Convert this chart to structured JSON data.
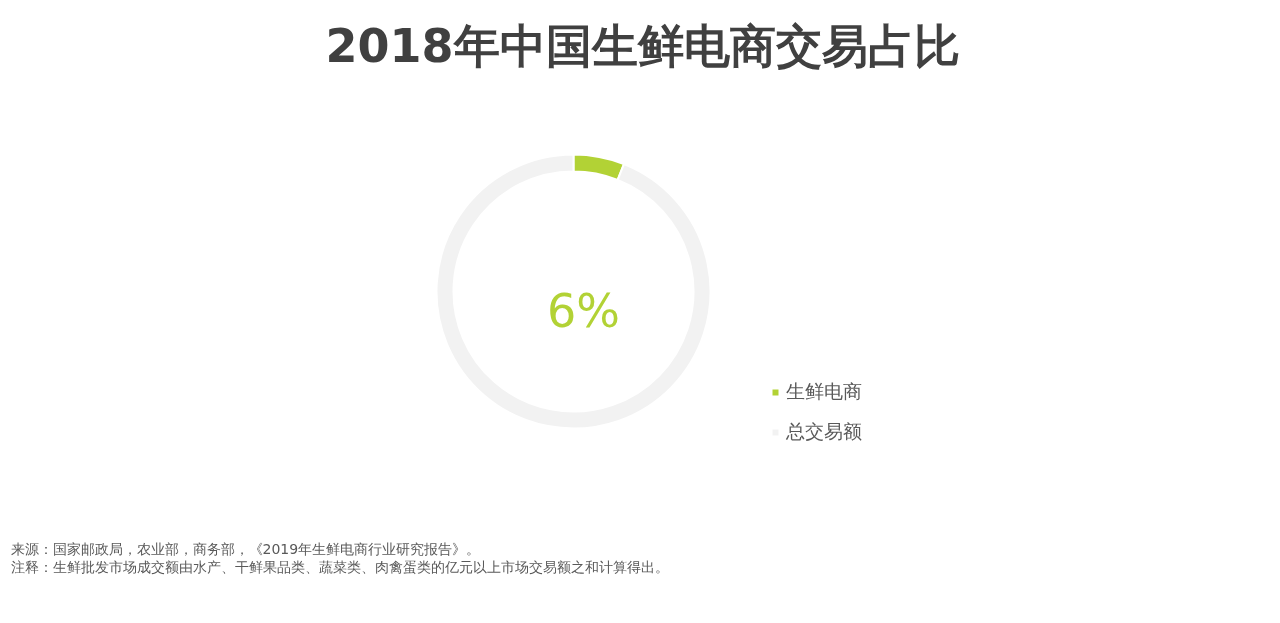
{
  "chart_data": {
    "type": "donut",
    "title": "2018年中国生鲜电商交易占比",
    "categories": [
      "生鲜电商",
      "总交易额"
    ],
    "values": [
      6,
      94
    ],
    "colors": [
      "#b2d235",
      "#f2f2f2"
    ],
    "legend": "right",
    "annotations": [
      "6%",
      "来源：国家邮政局，农业部，商务部，《2019年生鲜电商行业研究报告》。",
      "注释：生鲜批发市场成交额由水产、干鲜果品类、蔬菜类、肉禽蛋类的亿元以上市场交易额之和计算得出。"
    ]
  }
}
